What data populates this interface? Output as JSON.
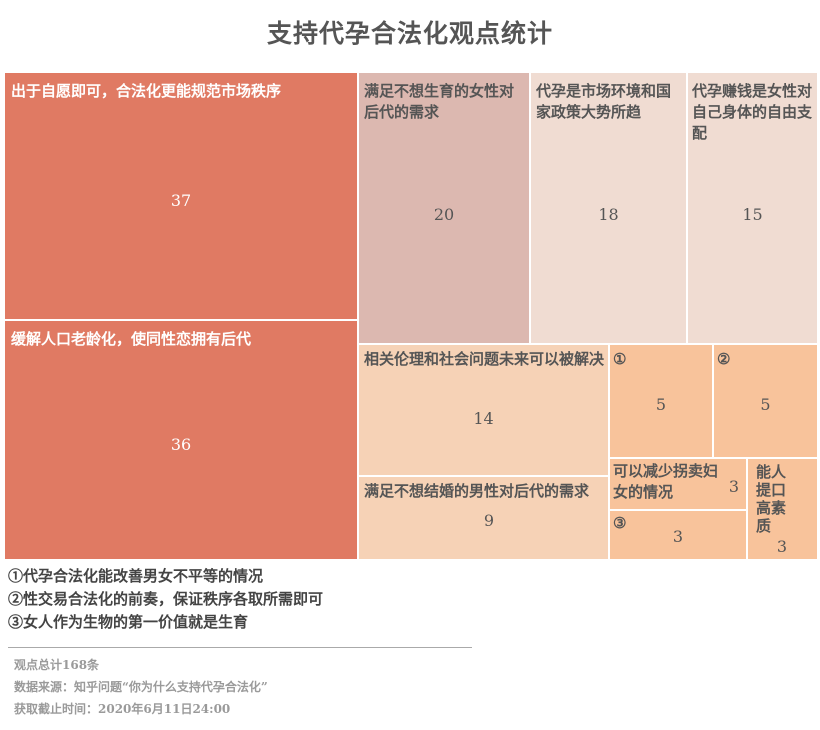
{
  "title": "支持代孕合法化观点统计",
  "colors": {
    "coral": "#e07a63",
    "rose": "#dcb8b0",
    "blush": "#f0dcd2",
    "peach": "#f6d2b6",
    "apricot": "#f8c39b",
    "label_dark": "#555555",
    "label_light": "#ffffff"
  },
  "chart_data": {
    "type": "treemap",
    "title": "支持代孕合法化观点统计",
    "items": [
      {
        "label": "出于自愿即可，合法化更能规范市场秩序",
        "value": 37,
        "color": "#e07a63"
      },
      {
        "label": "缓解人口老龄化，使同性恋拥有后代",
        "value": 36,
        "color": "#e07a63"
      },
      {
        "label": "满足不想生育的女性对后代的需求",
        "value": 20,
        "color": "#dcb8b0"
      },
      {
        "label": "代孕是市场环境和国家政策大势所趋",
        "value": 18,
        "color": "#f0dcd2"
      },
      {
        "label": "代孕赚钱是女性对自己身体的自由支配",
        "value": 15,
        "color": "#f0dcd2"
      },
      {
        "label": "相关伦理和社会问题未来可以被解决",
        "value": 14,
        "color": "#f6d2b6"
      },
      {
        "label": "满足不想结婚的男性对后代的需求",
        "value": 9,
        "color": "#f6d2b6"
      },
      {
        "label": "①",
        "value": 5,
        "color": "#f8c39b"
      },
      {
        "label": "②",
        "value": 5,
        "color": "#f8c39b"
      },
      {
        "label": "可以减少拐卖妇女的情况",
        "value": 3,
        "color": "#f8c39b"
      },
      {
        "label": "③",
        "value": 3,
        "color": "#f8c39b"
      },
      {
        "label": "能人提口高素质",
        "value": 3,
        "color": "#f8c39b"
      }
    ]
  },
  "notes": [
    "①代孕合法化能改善男女不平等的情况",
    "②性交易合法化的前奏，保证秩序各取所需即可",
    "③女人作为生物的第一价值就是生育"
  ],
  "footer": {
    "total": "观点总计168条",
    "source": "数据来源：知乎问题“你为什么支持代孕合法化”",
    "date": "获取截止时间：2020年6月11日24:00"
  }
}
